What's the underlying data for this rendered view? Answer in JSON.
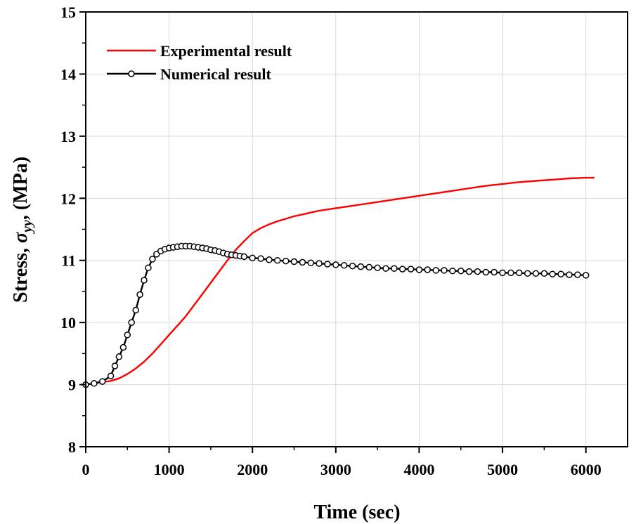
{
  "chart_data": {
    "type": "line",
    "xlabel": "Time (sec)",
    "ylabel": {
      "prefix": "Stress, ",
      "symbol": "σ",
      "subscript": "yy",
      "suffix": ", (MPa)"
    },
    "xlim": [
      0,
      6500
    ],
    "ylim": [
      8,
      15
    ],
    "x_ticks": [
      0,
      1000,
      2000,
      3000,
      4000,
      5000,
      6000
    ],
    "y_ticks": [
      8,
      9,
      10,
      11,
      12,
      13,
      14,
      15
    ],
    "grid": true,
    "legend_position": "top-left",
    "series": [
      {
        "name": "Experimental result",
        "color": "#ff0000",
        "marker": "none",
        "x": [
          0,
          200,
          300,
          400,
          500,
          600,
          700,
          800,
          900,
          1000,
          1100,
          1200,
          1300,
          1400,
          1500,
          1600,
          1700,
          1800,
          1900,
          2000,
          2100,
          2200,
          2300,
          2400,
          2500,
          2600,
          2700,
          2800,
          2900,
          3000,
          3200,
          3400,
          3600,
          3800,
          4000,
          4200,
          4400,
          4600,
          4800,
          5000,
          5200,
          5400,
          5600,
          5800,
          6000,
          6100
        ],
        "y": [
          9.0,
          9.04,
          9.06,
          9.1,
          9.17,
          9.26,
          9.37,
          9.5,
          9.65,
          9.8,
          9.95,
          10.1,
          10.28,
          10.46,
          10.64,
          10.82,
          11.0,
          11.17,
          11.31,
          11.44,
          11.52,
          11.58,
          11.63,
          11.67,
          11.71,
          11.74,
          11.77,
          11.8,
          11.82,
          11.84,
          11.88,
          11.92,
          11.96,
          12.0,
          12.04,
          12.08,
          12.12,
          12.16,
          12.2,
          12.23,
          12.26,
          12.28,
          12.3,
          12.32,
          12.33,
          12.33
        ]
      },
      {
        "name": "Numerical result",
        "color": "#000000",
        "marker": "open-circle",
        "x": [
          0,
          100,
          200,
          300,
          350,
          400,
          450,
          500,
          550,
          600,
          650,
          700,
          750,
          800,
          850,
          900,
          950,
          1000,
          1050,
          1100,
          1150,
          1200,
          1250,
          1300,
          1350,
          1400,
          1450,
          1500,
          1550,
          1600,
          1650,
          1700,
          1750,
          1800,
          1850,
          1900,
          2000,
          2100,
          2200,
          2300,
          2400,
          2500,
          2600,
          2700,
          2800,
          2900,
          3000,
          3100,
          3200,
          3300,
          3400,
          3500,
          3600,
          3700,
          3800,
          3900,
          4000,
          4100,
          4200,
          4300,
          4400,
          4500,
          4600,
          4700,
          4800,
          4900,
          5000,
          5100,
          5200,
          5300,
          5400,
          5500,
          5600,
          5700,
          5800,
          5900,
          6000
        ],
        "y": [
          9.0,
          9.02,
          9.05,
          9.14,
          9.3,
          9.45,
          9.6,
          9.8,
          10.0,
          10.2,
          10.45,
          10.68,
          10.88,
          11.02,
          11.1,
          11.15,
          11.18,
          11.2,
          11.21,
          11.22,
          11.23,
          11.23,
          11.23,
          11.22,
          11.21,
          11.2,
          11.19,
          11.17,
          11.16,
          11.14,
          11.12,
          11.1,
          11.09,
          11.08,
          11.07,
          11.06,
          11.04,
          11.03,
          11.01,
          11.0,
          10.99,
          10.98,
          10.97,
          10.96,
          10.95,
          10.94,
          10.93,
          10.92,
          10.91,
          10.9,
          10.89,
          10.88,
          10.87,
          10.87,
          10.86,
          10.86,
          10.85,
          10.85,
          10.84,
          10.84,
          10.83,
          10.83,
          10.82,
          10.82,
          10.81,
          10.81,
          10.8,
          10.8,
          10.8,
          10.79,
          10.79,
          10.79,
          10.78,
          10.78,
          10.77,
          10.77,
          10.76
        ]
      }
    ]
  }
}
